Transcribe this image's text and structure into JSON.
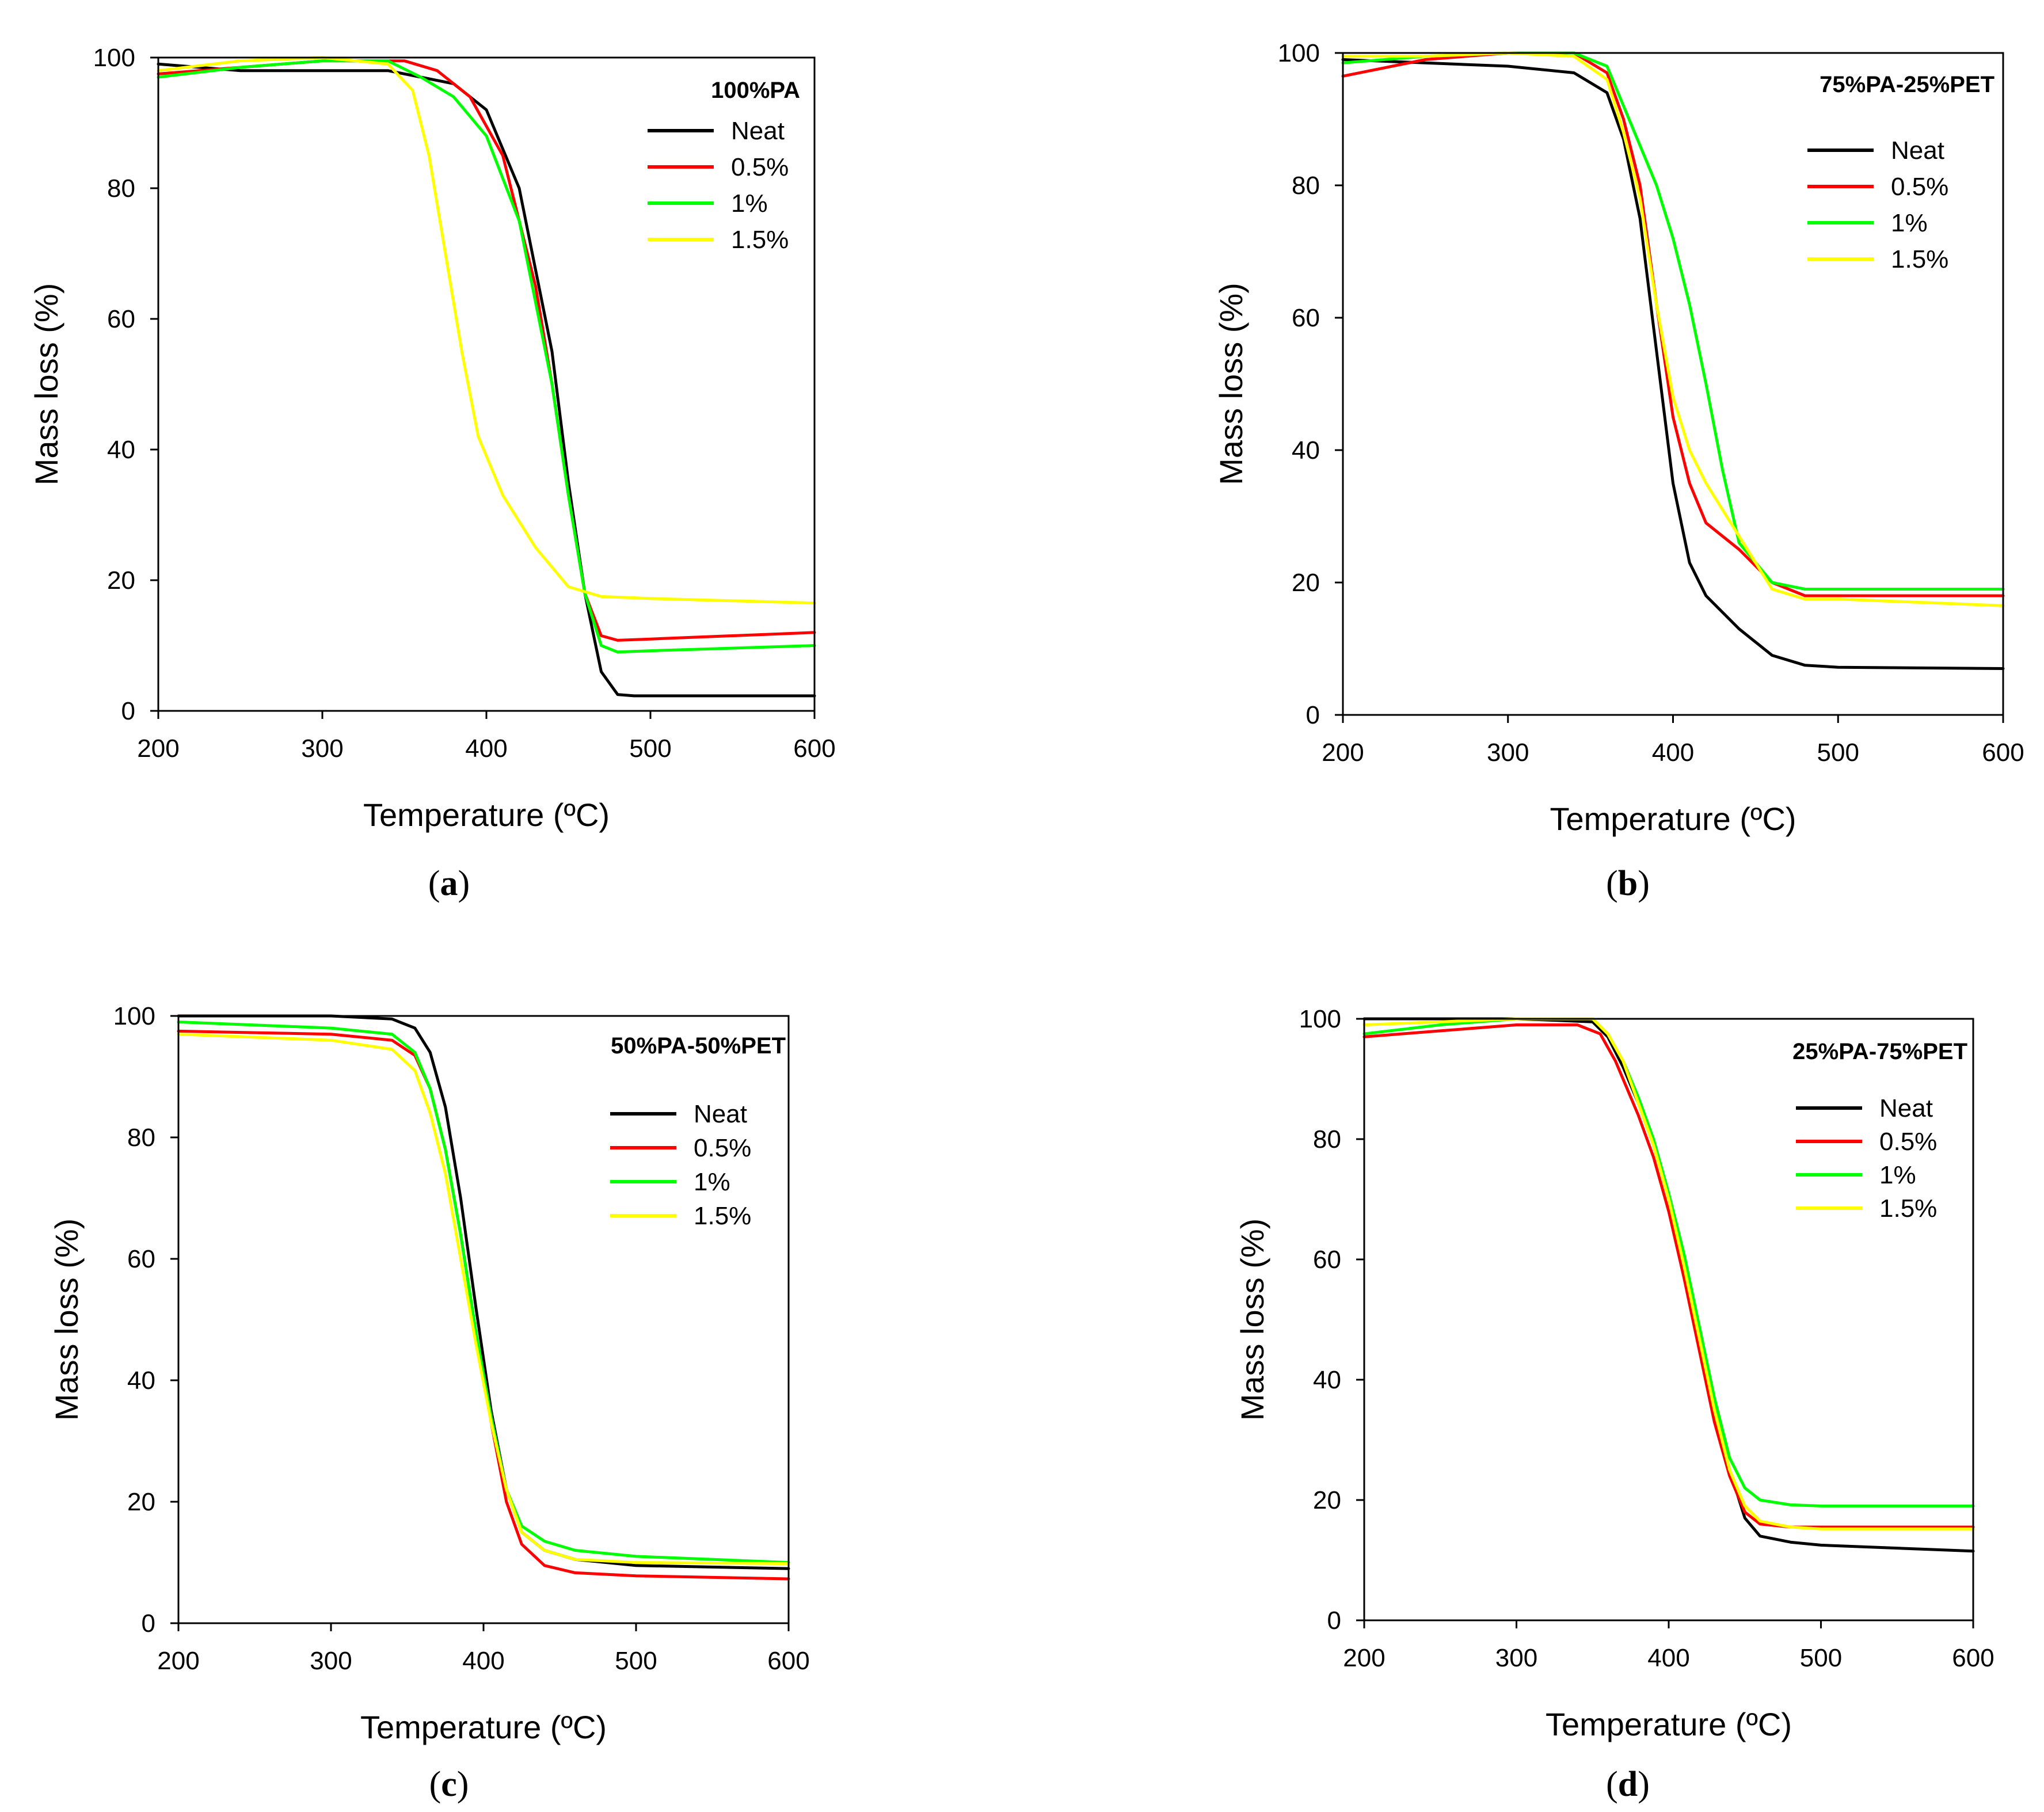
{
  "chart_data": [
    {
      "type": "line",
      "panel_label": "a",
      "title": "100%PA",
      "xlabel": "Temperature (ºC)",
      "ylabel": "Mass loss (%)",
      "xlim": [
        200,
        600
      ],
      "ylim": [
        0,
        100
      ],
      "xticks": [
        200,
        300,
        400,
        500,
        600
      ],
      "yticks": [
        0,
        20,
        40,
        60,
        80,
        100
      ],
      "legend_position": "top-right",
      "series": [
        {
          "name": "Neat",
          "color": "#000000",
          "x": [
            200,
            250,
            300,
            340,
            360,
            380,
            400,
            420,
            440,
            450,
            460,
            470,
            480,
            490,
            520,
            600
          ],
          "y": [
            99,
            98,
            98,
            98,
            97,
            96,
            92,
            80,
            55,
            35,
            18,
            6,
            2.5,
            2.3,
            2.3,
            2.3
          ]
        },
        {
          "name": "0.5%",
          "color": "#ff0000",
          "x": [
            200,
            250,
            300,
            350,
            370,
            390,
            410,
            430,
            440,
            450,
            460,
            470,
            480,
            500,
            600
          ],
          "y": [
            97.5,
            98.5,
            99.5,
            99.5,
            98,
            94,
            85,
            65,
            50,
            33,
            18,
            11.5,
            10.8,
            11,
            12
          ]
        },
        {
          "name": "1%",
          "color": "#00ff00",
          "x": [
            200,
            250,
            300,
            340,
            360,
            380,
            400,
            420,
            440,
            450,
            460,
            470,
            480,
            500,
            600
          ],
          "y": [
            97,
            98.5,
            99.5,
            99.5,
            97,
            94,
            88,
            75,
            50,
            33,
            18,
            10,
            9,
            9.2,
            10
          ]
        },
        {
          "name": "1.5%",
          "color": "#ffff00",
          "x": [
            200,
            250,
            300,
            340,
            355,
            365,
            375,
            385,
            395,
            410,
            430,
            450,
            470,
            500,
            600
          ],
          "y": [
            98,
            99.5,
            100,
            99,
            95,
            85,
            70,
            55,
            42,
            33,
            25,
            19,
            17.5,
            17.2,
            16.5
          ]
        }
      ]
    },
    {
      "type": "line",
      "panel_label": "b",
      "title": "75%PA-25%PET",
      "xlabel": "Temperature (ºC)",
      "ylabel": "Mass loss (%)",
      "xlim": [
        200,
        600
      ],
      "ylim": [
        0,
        100
      ],
      "xticks": [
        200,
        300,
        400,
        500,
        600
      ],
      "yticks": [
        0,
        20,
        40,
        60,
        80,
        100
      ],
      "legend_position": "top-right",
      "series": [
        {
          "name": "Neat",
          "color": "#000000",
          "x": [
            200,
            250,
            300,
            340,
            360,
            370,
            380,
            390,
            400,
            410,
            420,
            440,
            460,
            480,
            500,
            600
          ],
          "y": [
            99,
            98.5,
            98,
            97,
            94,
            87,
            75,
            55,
            35,
            23,
            18,
            13,
            9,
            7.5,
            7.2,
            7
          ]
        },
        {
          "name": "0.5%",
          "color": "#ff0000",
          "x": [
            200,
            250,
            300,
            340,
            360,
            370,
            380,
            390,
            400,
            410,
            420,
            440,
            460,
            480,
            600
          ],
          "y": [
            96.5,
            99,
            100,
            100,
            97,
            90,
            80,
            62,
            45,
            35,
            29,
            25,
            20,
            18,
            18
          ]
        },
        {
          "name": "1%",
          "color": "#00ff00",
          "x": [
            200,
            250,
            300,
            340,
            360,
            370,
            380,
            390,
            400,
            410,
            420,
            430,
            440,
            460,
            480,
            600
          ],
          "y": [
            98.5,
            99.5,
            100,
            100,
            98,
            92,
            86,
            80,
            72,
            62,
            50,
            37,
            26,
            20,
            19,
            19
          ]
        },
        {
          "name": "1.5%",
          "color": "#ffff00",
          "x": [
            200,
            250,
            300,
            340,
            360,
            370,
            380,
            390,
            400,
            410,
            420,
            440,
            460,
            480,
            500,
            600
          ],
          "y": [
            99.5,
            99.5,
            100,
            99.5,
            96,
            88,
            78,
            62,
            48,
            40,
            35,
            27,
            19,
            17.5,
            17.5,
            16.5
          ]
        }
      ]
    },
    {
      "type": "line",
      "panel_label": "c",
      "title": "50%PA-50%PET",
      "xlabel": "Temperature (ºC)",
      "ylabel": "Mass loss (%)",
      "xlim": [
        200,
        600
      ],
      "ylim": [
        0,
        100
      ],
      "xticks": [
        200,
        300,
        400,
        500,
        600
      ],
      "yticks": [
        0,
        20,
        40,
        60,
        80,
        100
      ],
      "legend_position": "top-right",
      "series": [
        {
          "name": "Neat",
          "color": "#000000",
          "x": [
            200,
            300,
            340,
            355,
            365,
            375,
            385,
            395,
            405,
            415,
            425,
            440,
            460,
            500,
            600
          ],
          "y": [
            100,
            100,
            99.5,
            98,
            94,
            85,
            70,
            52,
            35,
            22,
            15,
            12,
            10.5,
            9.5,
            9
          ]
        },
        {
          "name": "0.5%",
          "color": "#ff0000",
          "x": [
            200,
            300,
            340,
            355,
            365,
            375,
            385,
            395,
            405,
            415,
            425,
            440,
            460,
            500,
            600
          ],
          "y": [
            97.5,
            97,
            96,
            93.5,
            88,
            78,
            64,
            48,
            33,
            20,
            13,
            9.5,
            8.3,
            7.8,
            7.3
          ]
        },
        {
          "name": "1%",
          "color": "#00ff00",
          "x": [
            200,
            300,
            340,
            355,
            365,
            375,
            385,
            395,
            405,
            415,
            425,
            440,
            460,
            500,
            600
          ],
          "y": [
            99,
            98,
            97,
            94,
            88,
            78,
            64,
            48,
            34,
            22,
            16,
            13.5,
            12,
            11,
            10
          ]
        },
        {
          "name": "1.5%",
          "color": "#ffff00",
          "x": [
            200,
            300,
            340,
            355,
            365,
            375,
            385,
            395,
            405,
            415,
            425,
            440,
            460,
            500,
            600
          ],
          "y": [
            97,
            96,
            94.5,
            91,
            84,
            74,
            60,
            46,
            33,
            22,
            15,
            12,
            10.5,
            10,
            9.8
          ]
        }
      ]
    },
    {
      "type": "line",
      "panel_label": "d",
      "title": "25%PA-75%PET",
      "xlabel": "Temperature (ºC)",
      "ylabel": "Mass loss (%)",
      "xlim": [
        200,
        600
      ],
      "ylim": [
        0,
        100
      ],
      "xticks": [
        200,
        300,
        400,
        500,
        600
      ],
      "yticks": [
        0,
        20,
        40,
        60,
        80,
        100
      ],
      "legend_position": "top-right",
      "series": [
        {
          "name": "Neat",
          "color": "#000000",
          "x": [
            200,
            300,
            350,
            360,
            370,
            380,
            390,
            400,
            410,
            420,
            430,
            440,
            450,
            460,
            480,
            500,
            600
          ],
          "y": [
            100,
            100,
            99.5,
            97,
            92,
            86,
            79,
            70,
            59,
            47,
            35,
            25,
            17,
            14,
            13,
            12.5,
            11.5
          ]
        },
        {
          "name": "0.5%",
          "color": "#ff0000",
          "x": [
            200,
            250,
            300,
            340,
            355,
            365,
            380,
            390,
            400,
            410,
            420,
            430,
            440,
            450,
            460,
            480,
            500,
            600
          ],
          "y": [
            97,
            98,
            99,
            99,
            97.5,
            93,
            84,
            77,
            68,
            57,
            45,
            33,
            24,
            18,
            16,
            15.5,
            15.5,
            15.5
          ]
        },
        {
          "name": "1%",
          "color": "#00ff00",
          "x": [
            200,
            250,
            300,
            350,
            360,
            370,
            380,
            390,
            400,
            410,
            420,
            430,
            440,
            450,
            460,
            480,
            500,
            600
          ],
          "y": [
            97.5,
            99,
            100,
            100,
            97.5,
            93,
            87,
            80,
            71,
            61,
            49,
            37,
            27,
            22,
            20,
            19.2,
            19,
            19
          ]
        },
        {
          "name": "1.5%",
          "color": "#ffff00",
          "x": [
            200,
            250,
            300,
            350,
            360,
            370,
            380,
            390,
            400,
            410,
            420,
            430,
            440,
            450,
            460,
            480,
            500,
            600
          ],
          "y": [
            99,
            99.5,
            100,
            100,
            97.5,
            93,
            86,
            79,
            70,
            59,
            47,
            35,
            25,
            19,
            16.5,
            15.5,
            15.2,
            15.2
          ]
        }
      ]
    }
  ]
}
